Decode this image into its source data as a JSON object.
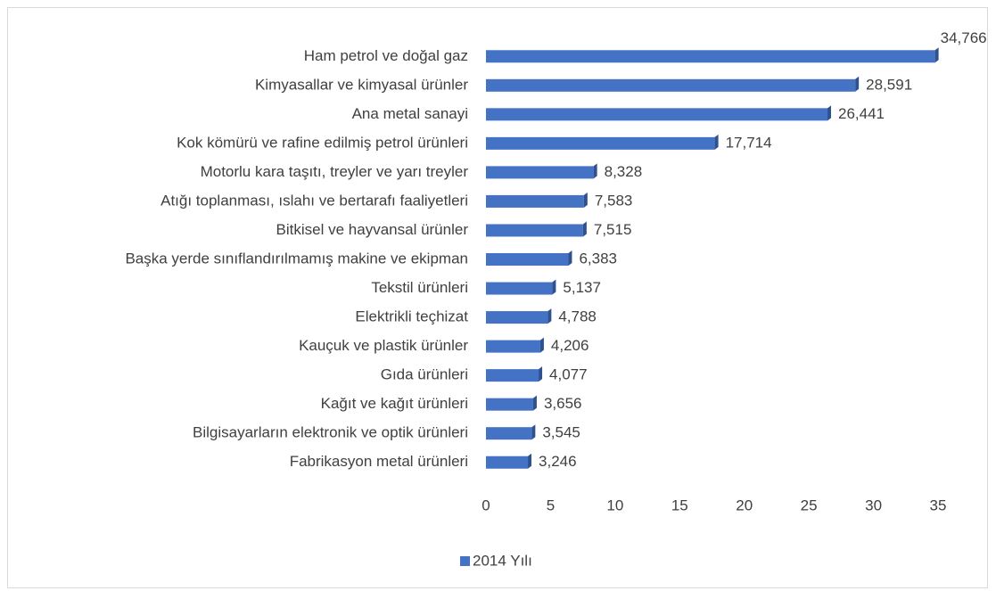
{
  "chart_data": {
    "type": "bar",
    "orientation": "horizontal",
    "categories": [
      "Ham petrol ve doğal gaz",
      "Kimyasallar ve kimyasal ürünler",
      "Ana metal sanayi",
      "Kok kömürü ve rafine edilmiş petrol ürünleri",
      "Motorlu kara taşıtı, treyler ve yarı treyler",
      "Atığı toplanması, ıslahı ve bertarafı faaliyetleri",
      "Bitkisel ve hayvansal ürünler",
      "Başka yerde sınıflandırılmamış makine ve ekipman",
      "Tekstil ürünleri",
      "Elektrikli teçhizat",
      "Kauçuk ve plastik ürünler",
      "Gıda ürünleri",
      "Kağıt ve kağıt ürünleri",
      "Bilgisayarların elektronik ve optik ürünleri",
      "Fabrikasyon metal ürünleri"
    ],
    "series": [
      {
        "name": "2014 Yılı",
        "color": "#4472c4",
        "values": [
          34.766,
          28.591,
          26.441,
          17.714,
          8.328,
          7.583,
          7.515,
          6.383,
          5.137,
          4.788,
          4.206,
          4.077,
          3.656,
          3.545,
          3.246
        ],
        "value_labels": [
          "34,766",
          "28,591",
          "26,441",
          "17,714",
          "8,328",
          "7,583",
          "7,515",
          "6,383",
          "5,137",
          "4,788",
          "4,206",
          "4,077",
          "3,656",
          "3,545",
          "3,246"
        ]
      }
    ],
    "xlim": [
      0,
      35
    ],
    "xticks": [
      0,
      5,
      10,
      15,
      20,
      25,
      30,
      35
    ],
    "grid": false,
    "legend": "bottom"
  }
}
